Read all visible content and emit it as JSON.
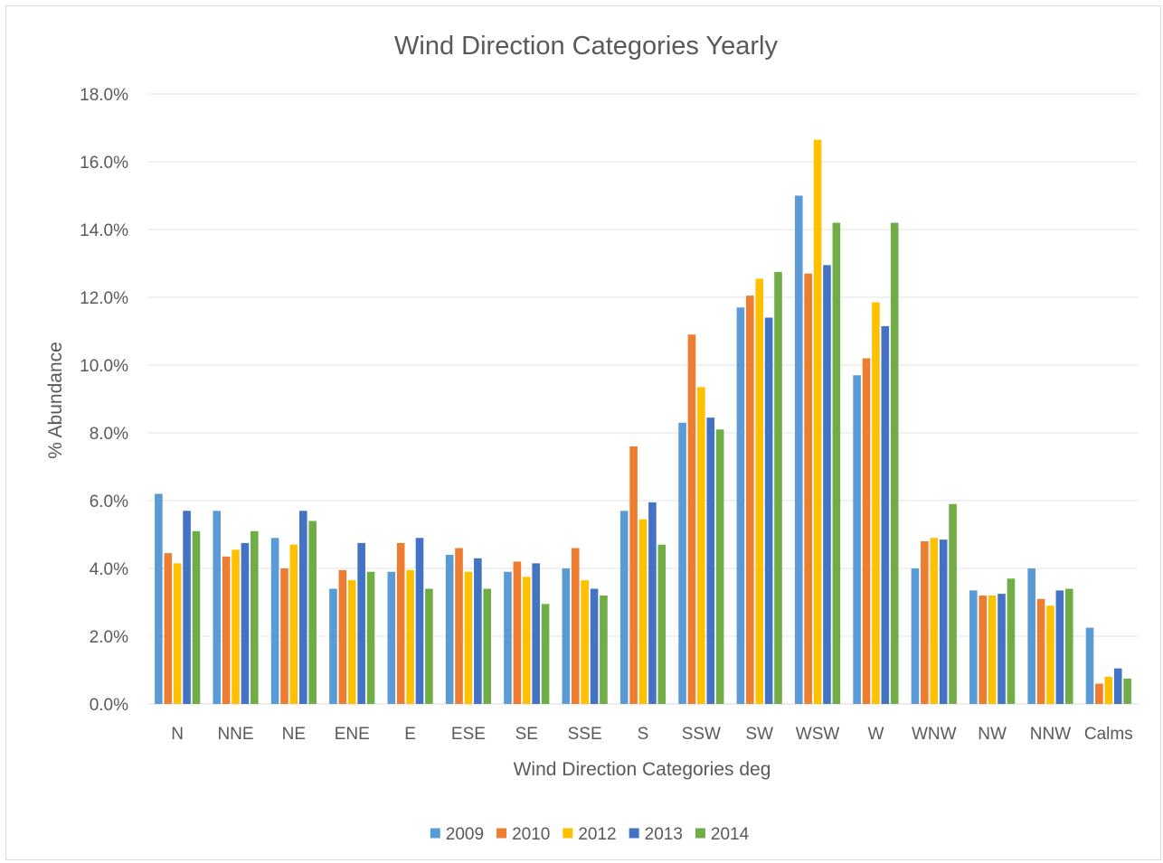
{
  "chart_data": {
    "type": "bar",
    "title": "Wind Direction Categories Yearly",
    "xlabel": "Wind Direction Categories deg",
    "ylabel": "% Abundance",
    "ylim": [
      0,
      18
    ],
    "y_ticks": [
      "0.0%",
      "2.0%",
      "4.0%",
      "6.0%",
      "8.0%",
      "10.0%",
      "12.0%",
      "14.0%",
      "16.0%",
      "18.0%"
    ],
    "grid": true,
    "legend_position": "bottom",
    "categories": [
      "N",
      "NNE",
      "NE",
      "ENE",
      "E",
      "ESE",
      "SE",
      "SSE",
      "S",
      "SSW",
      "SW",
      "WSW",
      "W",
      "WNW",
      "NW",
      "NNW",
      "Calms"
    ],
    "series": [
      {
        "name": "2009",
        "color": "#5b9bd5",
        "values": [
          6.2,
          5.7,
          4.9,
          3.4,
          3.9,
          4.4,
          3.9,
          4.0,
          5.7,
          8.3,
          11.7,
          15.0,
          9.7,
          4.0,
          3.35,
          4.0,
          2.25
        ]
      },
      {
        "name": "2010",
        "color": "#ed7d31",
        "values": [
          4.45,
          4.35,
          4.0,
          3.95,
          4.75,
          4.6,
          4.2,
          4.6,
          7.6,
          10.9,
          12.05,
          12.7,
          10.2,
          4.8,
          3.2,
          3.1,
          0.6
        ]
      },
      {
        "name": "2012",
        "color": "#ffc000",
        "values": [
          4.15,
          4.55,
          4.7,
          3.65,
          3.95,
          3.9,
          3.75,
          3.65,
          5.45,
          9.35,
          12.55,
          16.65,
          11.85,
          4.9,
          3.2,
          2.9,
          0.8
        ]
      },
      {
        "name": "2013",
        "color": "#4472c4",
        "values": [
          5.7,
          4.75,
          5.7,
          4.75,
          4.9,
          4.3,
          4.15,
          3.4,
          5.95,
          8.45,
          11.4,
          12.95,
          11.15,
          4.85,
          3.25,
          3.35,
          1.05
        ]
      },
      {
        "name": "2014",
        "color": "#70ad47",
        "values": [
          5.1,
          5.1,
          5.4,
          3.9,
          3.4,
          3.4,
          2.95,
          3.2,
          4.7,
          8.1,
          12.75,
          14.2,
          14.2,
          5.9,
          3.7,
          3.4,
          0.75
        ]
      }
    ]
  }
}
